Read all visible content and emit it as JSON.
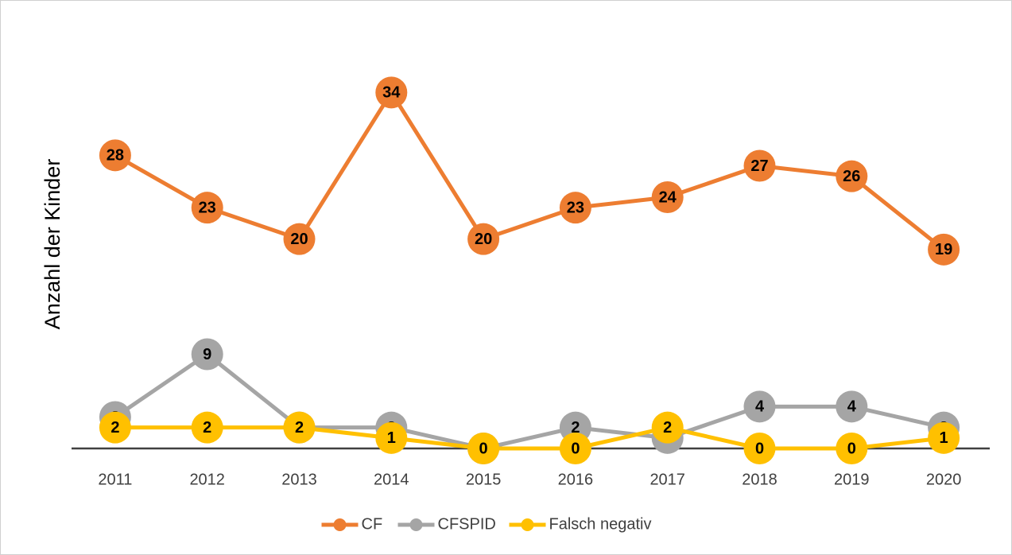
{
  "chart_data": {
    "type": "line",
    "y_label": "Anzahl der Kinder",
    "categories": [
      "2011",
      "2012",
      "2013",
      "2014",
      "2015",
      "2016",
      "2017",
      "2018",
      "2019",
      "2020"
    ],
    "series": [
      {
        "name": "CF",
        "color": "#ED7D31",
        "values": [
          28,
          23,
          20,
          34,
          20,
          23,
          24,
          27,
          26,
          19
        ]
      },
      {
        "name": "CFSPID",
        "color": "#A5A5A5",
        "values": [
          3,
          9,
          2,
          2,
          0,
          2,
          1,
          4,
          4,
          2
        ]
      },
      {
        "name": "Falsch negativ",
        "color": "#FFC000",
        "values": [
          2,
          2,
          2,
          1,
          0,
          0,
          2,
          0,
          0,
          1
        ]
      }
    ],
    "ylim": [
      0,
      36
    ],
    "legend": "bottom"
  }
}
